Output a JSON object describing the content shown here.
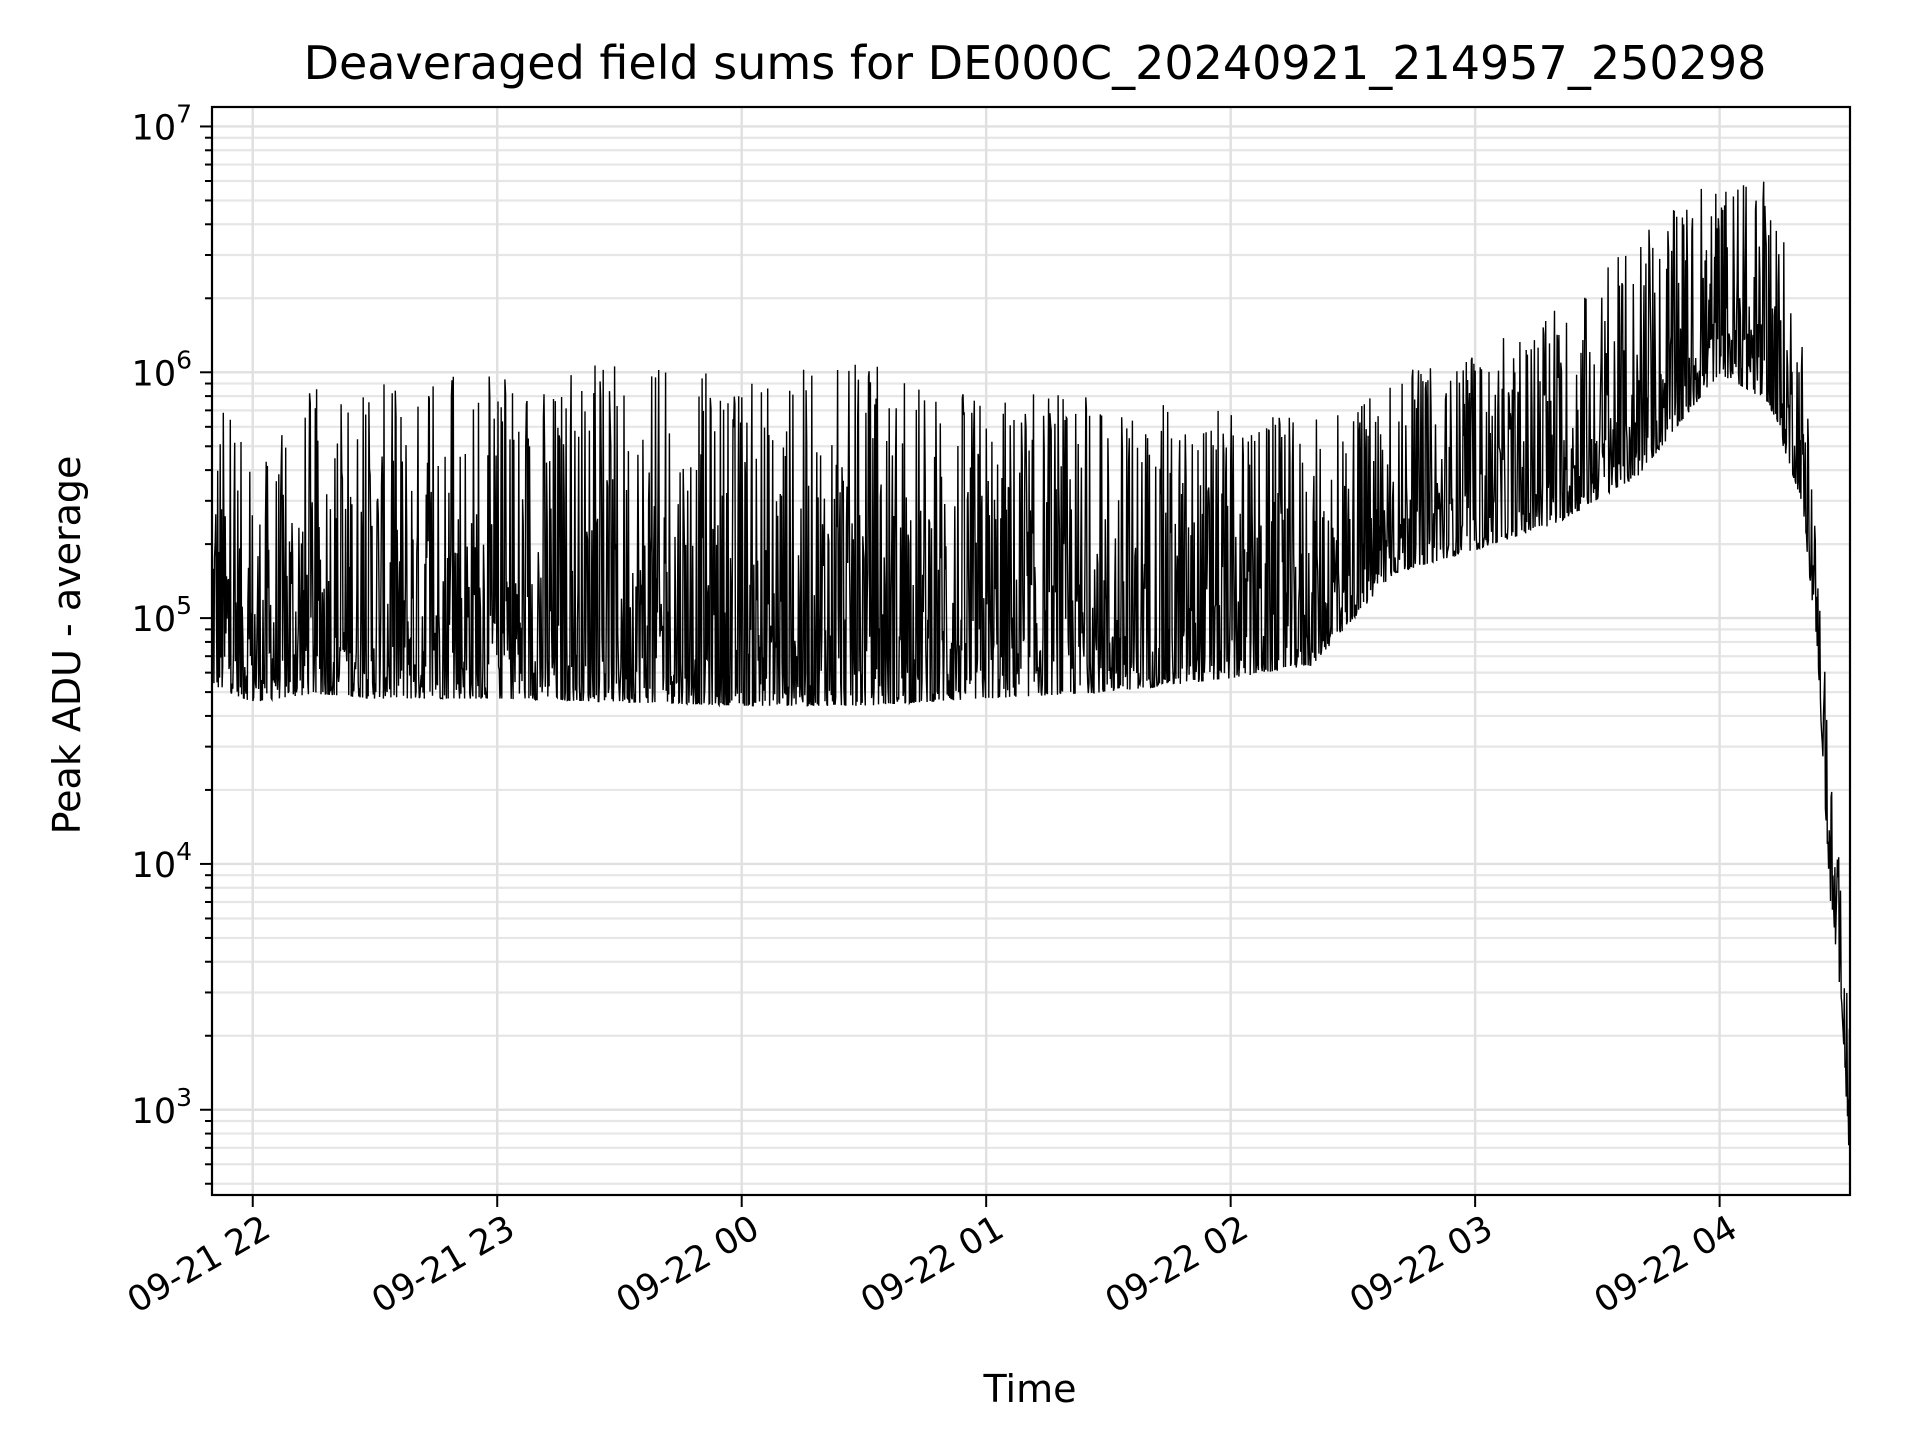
{
  "chart_data": {
    "type": "line",
    "title": "Deaveraged field sums for DE000C_20240921_214957_250298",
    "xlabel": "Time",
    "ylabel": "Peak ADU - average",
    "yscale": "log",
    "ylim": [
      450,
      12000000
    ],
    "xlim": [
      "2024-09-21 21:50",
      "2024-09-22 04:32"
    ],
    "grid": true,
    "grid_minor": true,
    "line_color": "#000000",
    "x_ticks": [
      {
        "value": "2024-09-21 22:00",
        "label": "09-21 22"
      },
      {
        "value": "2024-09-21 23:00",
        "label": "09-21 23"
      },
      {
        "value": "2024-09-22 00:00",
        "label": "09-22 00"
      },
      {
        "value": "2024-09-22 01:00",
        "label": "09-22 01"
      },
      {
        "value": "2024-09-22 02:00",
        "label": "09-22 02"
      },
      {
        "value": "2024-09-22 03:00",
        "label": "09-22 03"
      },
      {
        "value": "2024-09-22 04:00",
        "label": "09-22 04"
      }
    ],
    "y_ticks": [
      {
        "value": 1000,
        "base": "10",
        "exp": "3"
      },
      {
        "value": 10000,
        "base": "10",
        "exp": "4"
      },
      {
        "value": 100000,
        "base": "10",
        "exp": "5"
      },
      {
        "value": 1000000,
        "base": "10",
        "exp": "6"
      },
      {
        "value": 10000000,
        "base": "10",
        "exp": "7"
      }
    ],
    "series": [
      {
        "x": [
          "2024-09-21 21:50",
          "2024-09-21 22:00",
          "2024-09-21 22:15",
          "2024-09-21 22:30",
          "2024-09-21 23:00",
          "2024-09-21 23:30",
          "2024-09-22 00:00",
          "2024-09-22 00:30",
          "2024-09-22 01:00",
          "2024-09-22 01:30",
          "2024-09-22 02:00",
          "2024-09-22 02:20",
          "2024-09-22 02:40",
          "2024-09-22 03:00",
          "2024-09-22 03:20",
          "2024-09-22 03:40",
          "2024-09-22 04:00",
          "2024-09-22 04:12",
          "2024-09-22 04:20",
          "2024-09-22 04:24",
          "2024-09-22 04:27",
          "2024-09-22 04:30",
          "2024-09-22 04:32"
        ],
        "baseline": [
          70000,
          60000,
          65000,
          62000,
          62000,
          60000,
          58000,
          58000,
          62000,
          66000,
          75000,
          85000,
          200000,
          250000,
          320000,
          500000,
          1300000,
          1000000,
          400000,
          100000,
          10000,
          3500,
          700
        ],
        "peak": [
          1100000,
          400000,
          900000,
          900000,
          1000000,
          1100000,
          1000000,
          1100000,
          900000,
          800000,
          700000,
          650000,
          1000000,
          1200000,
          1800000,
          3500000,
          6500000,
          6000000,
          2000000,
          200000,
          30000,
          8000,
          2000
        ]
      }
    ]
  }
}
